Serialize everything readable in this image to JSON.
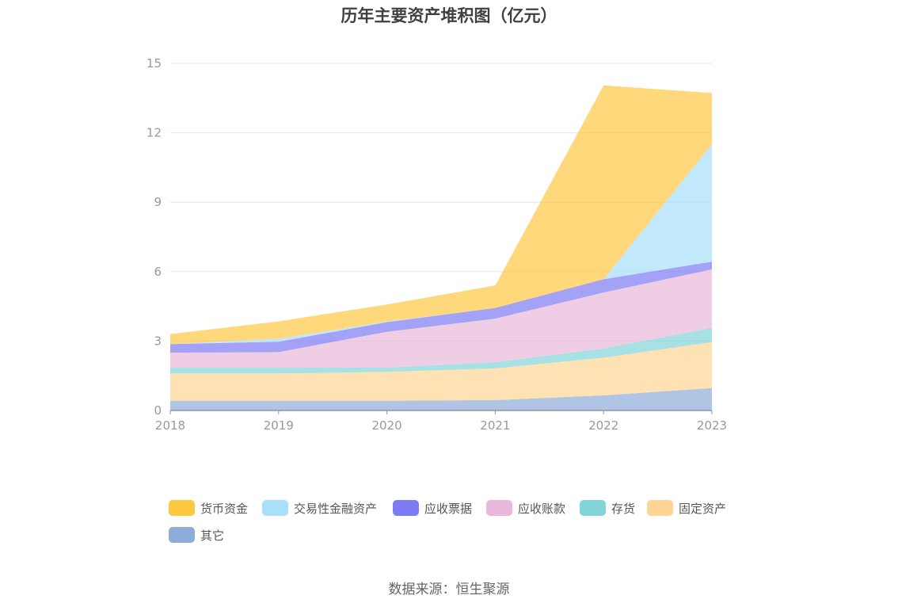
{
  "source_text": "数据来源：恒生聚源",
  "chart_data": {
    "type": "area",
    "stacked": true,
    "title": "历年主要资产堆积图（亿元）",
    "x": [
      "2018",
      "2019",
      "2020",
      "2021",
      "2022",
      "2023"
    ],
    "ylim": [
      0,
      15
    ],
    "yticks": [
      "0",
      "3",
      "6",
      "9",
      "12",
      "15"
    ],
    "grid": true,
    "legend_position": "bottom",
    "series": [
      {
        "name": "其它",
        "color": "#8eadd9",
        "values": [
          0.42,
          0.42,
          0.42,
          0.45,
          0.65,
          0.97
        ]
      },
      {
        "name": "固定资产",
        "color": "#fdd594",
        "values": [
          1.18,
          1.18,
          1.25,
          1.37,
          1.63,
          1.98
        ]
      },
      {
        "name": "存货",
        "color": "#82d4d9",
        "values": [
          0.25,
          0.25,
          0.18,
          0.27,
          0.4,
          0.62
        ]
      },
      {
        "name": "应收账款",
        "color": "#e8b8da",
        "values": [
          0.65,
          0.67,
          1.55,
          1.88,
          2.42,
          2.53
        ]
      },
      {
        "name": "应收票据",
        "color": "#7d7bf3",
        "values": [
          0.37,
          0.45,
          0.42,
          0.46,
          0.57,
          0.33
        ]
      },
      {
        "name": "交易性金融资产",
        "color": "#a8dff9",
        "values": [
          0.0,
          0.13,
          0.03,
          0.0,
          0.0,
          5.08
        ]
      },
      {
        "name": "货币资金",
        "color": "#fec841",
        "values": [
          0.43,
          0.75,
          0.73,
          0.97,
          8.38,
          2.21
        ]
      }
    ]
  }
}
